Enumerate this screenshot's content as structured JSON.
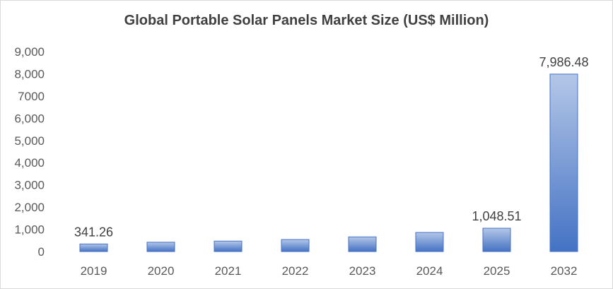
{
  "chart_data": {
    "type": "bar",
    "title": "Global Portable Solar Panels Market Size (US$ Million)",
    "categories": [
      "2019",
      "2020",
      "2021",
      "2022",
      "2023",
      "2024",
      "2025",
      "2032"
    ],
    "values": [
      341.26,
      420,
      470,
      540,
      660,
      860,
      1048.51,
      7986.48
    ],
    "data_labels": [
      "341.26",
      "",
      "",
      "",
      "",
      "",
      "1,048.51",
      "7,986.48"
    ],
    "ylim": [
      0,
      9000
    ],
    "y_ticks": [
      {
        "value": 0,
        "label": "0"
      },
      {
        "value": 1000,
        "label": "1,000"
      },
      {
        "value": 2000,
        "label": "2,000"
      },
      {
        "value": 3000,
        "label": "3,000"
      },
      {
        "value": 4000,
        "label": "4,000"
      },
      {
        "value": 5000,
        "label": "5,000"
      },
      {
        "value": 6000,
        "label": "6,000"
      },
      {
        "value": 7000,
        "label": "7000"
      },
      {
        "value": 8000,
        "label": "8,000"
      },
      {
        "value": 9000,
        "label": "9,000"
      }
    ],
    "grid": false,
    "legend": "none",
    "colors": {
      "bar_top": "#b4c7e7",
      "bar_bottom": "#4472c4",
      "bar_edge": "#4472c4"
    }
  }
}
